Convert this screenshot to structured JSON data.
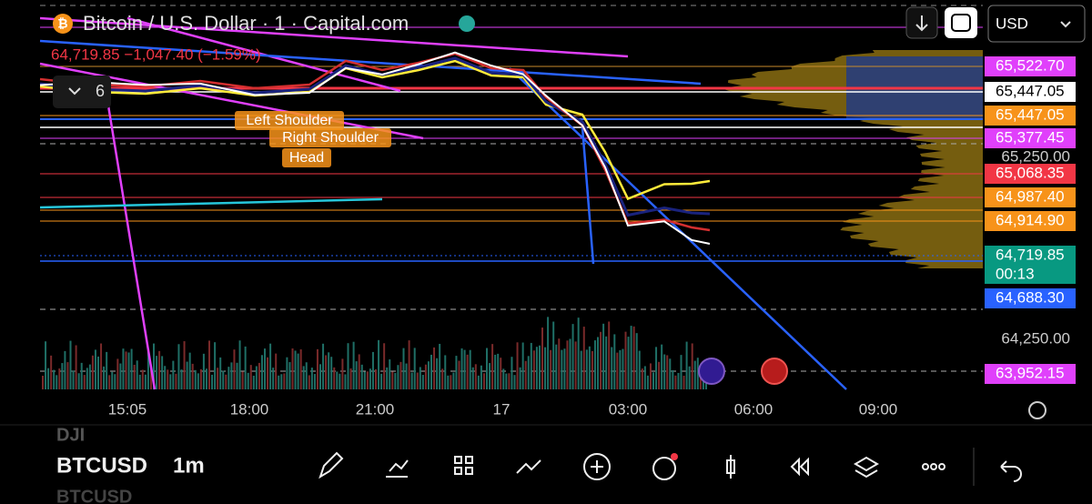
{
  "header": {
    "title": "Bitcoin / U.S. Dollar · 1 · Capital.com",
    "quote": "64,719.85 −1,047.40 (−1.59%)",
    "indicators": "6",
    "currency": "USD"
  },
  "annotations": [
    "Left Shoulder",
    "Right Shoulder",
    "Head"
  ],
  "price_labels": [
    {
      "text": "65,522.70",
      "color": "#e040fb"
    },
    {
      "text": "65,447.05",
      "color": "#ffffff"
    },
    {
      "text": "65,447.05",
      "color": "#f7931a"
    },
    {
      "text": "65,377.45",
      "color": "#e040fb"
    },
    {
      "text": "65,068.35",
      "color": "#f23645"
    },
    {
      "text": "64,987.40",
      "color": "#f7931a"
    },
    {
      "text": "64,914.90",
      "color": "#f7931a"
    },
    {
      "text": "64,719.85",
      "sub": "00:13",
      "color": "#089981"
    },
    {
      "text": "64,688.30",
      "color": "#2962ff"
    },
    {
      "text": "63,952.15",
      "color": "#e040fb"
    }
  ],
  "price_axis": [
    "65,250.00",
    "64,250.00"
  ],
  "time_axis": [
    "15:05",
    "18:00",
    "21:00",
    "17",
    "03:00",
    "06:00",
    "09:00"
  ],
  "toolbar": {
    "prev_symbol": "DJI",
    "symbol": "BTCUSD",
    "interval": "1m",
    "next_symbol": "BTCUSD"
  }
}
